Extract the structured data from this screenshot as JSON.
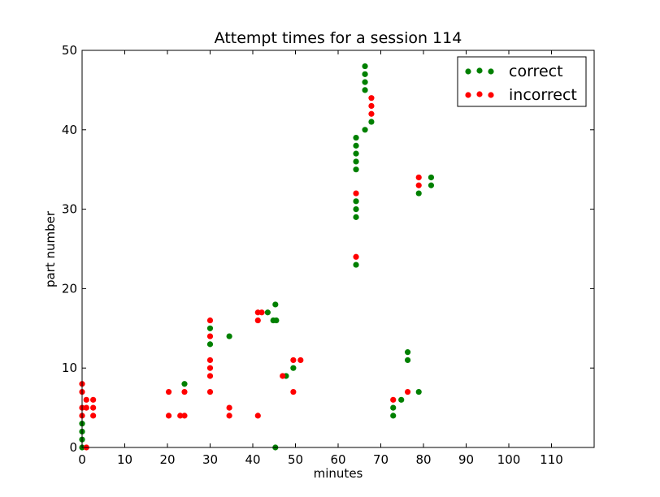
{
  "chart_data": {
    "type": "scatter",
    "title": "Attempt times for a session 114",
    "xlabel": "minutes",
    "ylabel": "part number",
    "xlim": [
      0,
      120
    ],
    "ylim": [
      0,
      50
    ],
    "xticks": [
      0,
      10,
      20,
      30,
      40,
      50,
      60,
      70,
      80,
      90,
      100,
      110
    ],
    "yticks": [
      0,
      10,
      20,
      30,
      40,
      50
    ],
    "grid": false,
    "legend_position": "top-right",
    "series": [
      {
        "name": "correct",
        "color": "#008000",
        "points": [
          [
            0,
            0
          ],
          [
            0,
            1
          ],
          [
            0,
            2
          ],
          [
            0,
            3
          ],
          [
            24,
            8
          ],
          [
            30,
            13
          ],
          [
            30,
            15
          ],
          [
            34.5,
            14
          ],
          [
            43.5,
            17
          ],
          [
            44.8,
            16
          ],
          [
            45.5,
            16
          ],
          [
            45.3,
            18
          ],
          [
            45.3,
            0
          ],
          [
            47.8,
            9
          ],
          [
            49.5,
            10
          ],
          [
            64.2,
            23
          ],
          [
            64.2,
            29
          ],
          [
            64.2,
            30
          ],
          [
            64.2,
            31
          ],
          [
            64.2,
            35
          ],
          [
            64.2,
            36
          ],
          [
            64.2,
            37
          ],
          [
            64.2,
            38
          ],
          [
            64.2,
            39
          ],
          [
            66.3,
            40
          ],
          [
            66.3,
            45
          ],
          [
            66.3,
            46
          ],
          [
            66.3,
            47
          ],
          [
            66.3,
            48
          ],
          [
            67.8,
            41
          ],
          [
            72.9,
            4
          ],
          [
            72.9,
            5
          ],
          [
            74.8,
            6
          ],
          [
            76.3,
            11
          ],
          [
            76.3,
            12
          ],
          [
            78.9,
            7
          ],
          [
            78.9,
            32
          ],
          [
            81.8,
            33
          ],
          [
            81.8,
            34
          ]
        ]
      },
      {
        "name": "incorrect",
        "color": "#ff0000",
        "points": [
          [
            0,
            8
          ],
          [
            0,
            7
          ],
          [
            0,
            5
          ],
          [
            0,
            4
          ],
          [
            1,
            6
          ],
          [
            1,
            5
          ],
          [
            1,
            0
          ],
          [
            2.6,
            6
          ],
          [
            2.6,
            5
          ],
          [
            2.6,
            4
          ],
          [
            20.3,
            7
          ],
          [
            20.3,
            4
          ],
          [
            23,
            4
          ],
          [
            24,
            7
          ],
          [
            24,
            4
          ],
          [
            30,
            16
          ],
          [
            30,
            14
          ],
          [
            30,
            11
          ],
          [
            30,
            10
          ],
          [
            30,
            9
          ],
          [
            30,
            7
          ],
          [
            34.5,
            5
          ],
          [
            34.5,
            4
          ],
          [
            41.2,
            17
          ],
          [
            41.2,
            16
          ],
          [
            41.2,
            4
          ],
          [
            42.1,
            17
          ],
          [
            47,
            9
          ],
          [
            49.5,
            11
          ],
          [
            49.5,
            7
          ],
          [
            51.2,
            11
          ],
          [
            64.2,
            32
          ],
          [
            64.2,
            24
          ],
          [
            67.8,
            44
          ],
          [
            67.8,
            43
          ],
          [
            67.8,
            42
          ],
          [
            72.9,
            6
          ],
          [
            76.3,
            7
          ],
          [
            78.9,
            34
          ],
          [
            78.9,
            33
          ]
        ]
      }
    ]
  }
}
